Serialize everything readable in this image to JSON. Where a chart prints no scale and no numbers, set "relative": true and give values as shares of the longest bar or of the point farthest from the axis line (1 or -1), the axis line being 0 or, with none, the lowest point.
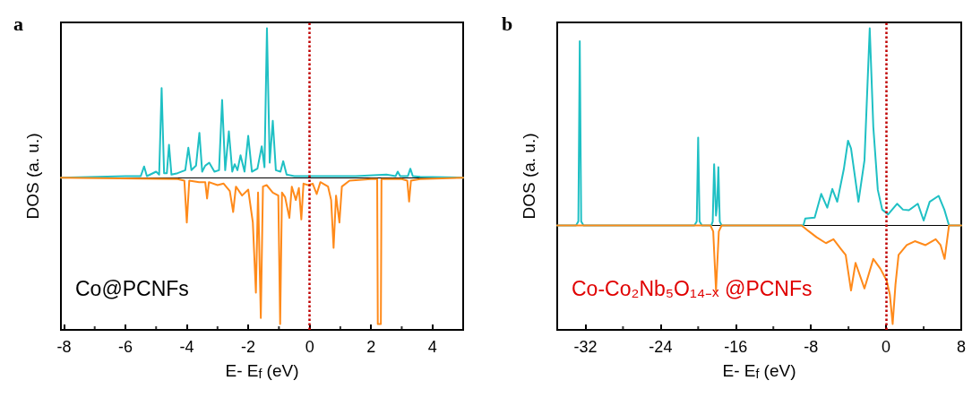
{
  "chart_data": [
    {
      "type": "line",
      "title": "a",
      "xlabel": "E- E$_{f}$ (eV)",
      "ylabel": "DOS (a. u.)",
      "annotations": [
        "Co@PCNFs"
      ],
      "relative": true,
      "xlim": [
        -8.1,
        5
      ],
      "xticks": [
        -8,
        -6,
        -4,
        -2,
        0,
        2,
        4
      ],
      "grid": false,
      "marker": "none",
      "line_style": "solid",
      "ref_lines": [
        {
          "axis": "x",
          "value": 0,
          "color": "#c00000",
          "line_style": "dotted"
        }
      ],
      "series": [
        {
          "color": "#1fc0c4",
          "x": [
            -8.1,
            -6,
            -5.5,
            -5.39,
            -5.3,
            -5.0,
            -4.9,
            -4.82,
            -4.74,
            -4.65,
            -4.58,
            -4.5,
            -4.3,
            -4.05,
            -3.95,
            -3.85,
            -3.7,
            -3.59,
            -3.5,
            -3.4,
            -3.27,
            -3.1,
            -2.95,
            -2.85,
            -2.75,
            -2.63,
            -2.52,
            -2.44,
            -2.35,
            -2.25,
            -2.12,
            -2.0,
            -1.88,
            -1.7,
            -1.56,
            -1.47,
            -1.39,
            -1.3,
            -1.2,
            -1.1,
            -0.95,
            -0.86,
            -0.75,
            -0.5,
            0,
            0.5,
            1.5,
            2.5,
            2.8,
            2.87,
            2.95,
            3.2,
            3.28,
            3.36,
            3.6,
            5
          ],
          "values": [
            0,
            0.01,
            0.01,
            0.075,
            0.01,
            0.04,
            0.02,
            0.6,
            0.03,
            0.03,
            0.22,
            0.02,
            0.03,
            0.05,
            0.2,
            0.05,
            0.08,
            0.3,
            0.04,
            0.08,
            0.1,
            0.04,
            0.05,
            0.52,
            0.05,
            0.31,
            0.04,
            0.09,
            0.05,
            0.15,
            0.04,
            0.28,
            0.04,
            0.06,
            0.21,
            0.07,
            1.0,
            0.1,
            0.38,
            0.05,
            0.04,
            0.11,
            0.02,
            0.01,
            0.01,
            0.01,
            0.01,
            0.02,
            0.01,
            0.04,
            0.01,
            0.01,
            0.06,
            0.01,
            0.005,
            0
          ]
        },
        {
          "color": "#ff8a1a",
          "x": [
            -8.1,
            -4.3,
            -4.08,
            -4.0,
            -3.92,
            -3.6,
            -3.4,
            -3.34,
            -3.28,
            -3.0,
            -2.8,
            -2.6,
            -2.49,
            -2.4,
            -2.2,
            -2.0,
            -1.85,
            -1.75,
            -1.68,
            -1.59,
            -1.52,
            -1.4,
            -1.2,
            -1.02,
            -0.96,
            -0.9,
            -0.8,
            -0.66,
            -0.58,
            -0.45,
            -0.35,
            -0.27,
            -0.2,
            -0.05,
            0.1,
            0.23,
            0.35,
            0.6,
            0.7,
            0.78,
            0.86,
            0.97,
            1.05,
            1.3,
            2.0,
            2.2,
            2.22,
            2.32,
            2.34,
            3.0,
            3.18,
            3.24,
            3.3,
            3.6,
            5
          ],
          "values": [
            0,
            -0.01,
            -0.02,
            -0.3,
            -0.02,
            -0.03,
            -0.03,
            -0.14,
            -0.03,
            -0.05,
            -0.04,
            -0.09,
            -0.23,
            -0.06,
            -0.12,
            -0.08,
            -0.3,
            -0.77,
            -0.1,
            -0.94,
            -0.06,
            -0.05,
            -0.1,
            -0.12,
            -0.98,
            -0.1,
            -0.13,
            -0.27,
            -0.06,
            -0.15,
            -0.07,
            -0.28,
            -0.04,
            -0.05,
            -0.04,
            -0.11,
            -0.03,
            -0.06,
            -0.15,
            -0.47,
            -0.12,
            -0.3,
            -0.06,
            -0.02,
            -0.01,
            -0.01,
            -0.98,
            -0.98,
            -0.01,
            -0.01,
            -0.02,
            -0.16,
            -0.02,
            -0.01,
            0
          ]
        }
      ]
    },
    {
      "type": "line",
      "title": "b",
      "xlabel": "E- E$_{f}$ (eV)",
      "ylabel": "DOS (a. u.)",
      "annotations": [
        "Co-Co₂Nb₅O₁₄₋ₓ @PCNFs"
      ],
      "relative": true,
      "xlim": [
        -35,
        8
      ],
      "xticks": [
        -32,
        -24,
        -16,
        -8,
        0,
        8
      ],
      "grid": false,
      "marker": "none",
      "line_style": "solid",
      "ref_lines": [
        {
          "axis": "x",
          "value": 0,
          "color": "#c00000",
          "line_style": "dotted"
        }
      ],
      "series": [
        {
          "color": "#1fc0c4",
          "x": [
            -35,
            -33.0,
            -32.75,
            -32.6,
            -32.45,
            -32.2,
            -20.4,
            -20.15,
            -20.0,
            -19.85,
            -19.6,
            -18.6,
            -18.45,
            -18.3,
            -18.1,
            -17.98,
            -17.85,
            -17.7,
            -17.5,
            -8.8,
            -8.6,
            -7.6,
            -6.9,
            -6.26,
            -5.72,
            -5.2,
            -4.5,
            -4.05,
            -3.73,
            -2.94,
            -2.3,
            -1.74,
            -1.36,
            -0.88,
            -0.41,
            0.22,
            1.17,
            1.8,
            2.43,
            3.38,
            4.0,
            4.64,
            5.59,
            6.2,
            6.7,
            8
          ],
          "values": [
            0,
            0,
            0.02,
            0.935,
            0.02,
            0,
            0,
            0.02,
            0.446,
            0.02,
            0,
            0,
            0.02,
            0.31,
            0.05,
            0.1,
            0.296,
            0.02,
            0,
            0,
            0.035,
            0.04,
            0.16,
            0.09,
            0.185,
            0.12,
            0.285,
            0.43,
            0.39,
            0.12,
            0.33,
            1.0,
            0.5,
            0.18,
            0.08,
            0.056,
            0.11,
            0.08,
            0.077,
            0.11,
            0.025,
            0.12,
            0.15,
            0.08,
            0,
            0
          ]
        },
        {
          "color": "#ff8a1a",
          "x": [
            -35,
            -18.7,
            -18.4,
            -18.1,
            -17.8,
            -17.5,
            -9.0,
            -8.3,
            -7.4,
            -6.4,
            -5.6,
            -4.8,
            -4.3,
            -3.73,
            -3.25,
            -2.3,
            -1.36,
            -0.6,
            0.06,
            0.4,
            0.7,
            1.0,
            1.33,
            2.2,
            3.06,
            4.2,
            5.28,
            5.8,
            6.23,
            6.7,
            8
          ],
          "values": [
            0,
            0,
            -0.03,
            -0.33,
            -0.03,
            0,
            0,
            -0.027,
            -0.06,
            -0.09,
            -0.07,
            -0.12,
            -0.15,
            -0.33,
            -0.19,
            -0.32,
            -0.17,
            -0.22,
            -0.28,
            -0.35,
            -0.5,
            -0.3,
            -0.15,
            -0.1,
            -0.08,
            -0.1,
            -0.07,
            -0.1,
            -0.17,
            0,
            0
          ]
        }
      ]
    }
  ]
}
